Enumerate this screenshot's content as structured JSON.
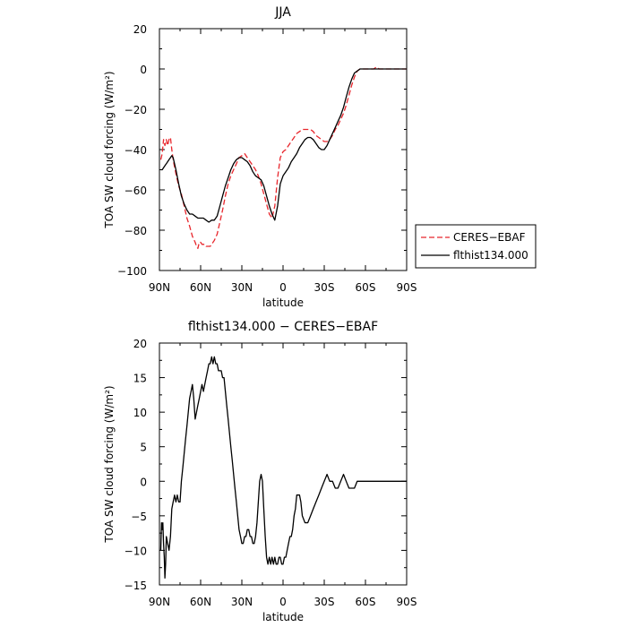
{
  "chart_data": [
    {
      "type": "line",
      "title": "JJA",
      "xlabel": "latitude",
      "ylabel": "TOA SW cloud forcing (W/m²)",
      "ylim": [
        -100,
        20
      ],
      "xlim": [
        90,
        -90
      ],
      "x_ticks": [
        90,
        60,
        30,
        0,
        -30,
        -60,
        -90
      ],
      "x_tick_labels": [
        "90N",
        "60N",
        "30N",
        "0",
        "30S",
        "60S",
        "90S"
      ],
      "y_ticks": [
        20,
        0,
        -20,
        -40,
        -60,
        -80,
        -100
      ],
      "y_tick_labels": [
        "20",
        "0",
        "−20",
        "−40",
        "−60",
        "−80",
        "−100"
      ],
      "grid": false,
      "legend": "right-outside",
      "series": [
        {
          "name": "CERES−EBAF",
          "color": "#e8262c",
          "dash": "dashed",
          "x": [
            89,
            88,
            87,
            86,
            85,
            84,
            83,
            82,
            81,
            80,
            78,
            76,
            74,
            72,
            70,
            68,
            66,
            64,
            63,
            62,
            61,
            60,
            59,
            58,
            57,
            56,
            55,
            54,
            53,
            52,
            50,
            48,
            46,
            44,
            42,
            40,
            38,
            36,
            34,
            32,
            30,
            28,
            26,
            24,
            22,
            20,
            18,
            16,
            14,
            12,
            10,
            8,
            6,
            4,
            2,
            0,
            -2,
            -4,
            -6,
            -8,
            -10,
            -12,
            -14,
            -16,
            -18,
            -20,
            -22,
            -24,
            -26,
            -28,
            -30,
            -32,
            -34,
            -36,
            -38,
            -40,
            -42,
            -44,
            -46,
            -48,
            -50,
            -52,
            -54,
            -56,
            -58,
            -60,
            -62,
            -64,
            -66,
            -68,
            -70,
            -72,
            -74,
            -76,
            -78,
            -80,
            -82,
            -84,
            -86,
            -88,
            -90
          ],
          "y": [
            -45,
            -42,
            -35,
            -38,
            -35,
            -38,
            -35,
            -34,
            -40,
            -45,
            -52,
            -58,
            -62,
            -68,
            -74,
            -78,
            -83,
            -86,
            -88,
            -89,
            -86,
            -86,
            -87,
            -87,
            -87,
            -88,
            -88,
            -88,
            -88,
            -87,
            -85,
            -82,
            -76,
            -70,
            -63,
            -57,
            -53,
            -50,
            -47,
            -44,
            -43,
            -42,
            -44,
            -46,
            -48,
            -50,
            -53,
            -57,
            -62,
            -67,
            -72,
            -74,
            -68,
            -54,
            -44,
            -41,
            -40,
            -38,
            -36,
            -34,
            -32,
            -31,
            -30,
            -30,
            -30,
            -30,
            -31,
            -33,
            -34,
            -35,
            -36,
            -36,
            -35,
            -33,
            -30,
            -28,
            -25,
            -22,
            -18,
            -13,
            -8,
            -4,
            -1,
            0,
            0,
            0,
            0,
            0,
            0,
            1,
            0,
            0,
            0,
            0,
            0,
            0,
            0,
            0,
            0,
            0,
            0
          ]
        },
        {
          "name": "flthist134.000",
          "color": "#000000",
          "dash": "solid",
          "x": [
            89,
            88,
            87,
            86,
            85,
            84,
            83,
            82,
            81,
            80,
            78,
            76,
            74,
            72,
            70,
            68,
            66,
            64,
            62,
            60,
            58,
            56,
            54,
            52,
            50,
            48,
            46,
            44,
            42,
            40,
            38,
            36,
            34,
            32,
            30,
            28,
            26,
            24,
            22,
            20,
            18,
            16,
            14,
            12,
            10,
            8,
            6,
            4,
            2,
            0,
            -2,
            -4,
            -6,
            -8,
            -10,
            -12,
            -14,
            -16,
            -18,
            -20,
            -22,
            -24,
            -26,
            -28,
            -30,
            -32,
            -34,
            -36,
            -38,
            -40,
            -42,
            -44,
            -46,
            -48,
            -50,
            -52,
            -54,
            -56,
            -58,
            -60,
            -62,
            -64,
            -66,
            -68,
            -70,
            -72,
            -74,
            -76,
            -78,
            -80,
            -82,
            -84,
            -86,
            -88,
            -90
          ],
          "y": [
            -50,
            -50,
            -49,
            -48,
            -47,
            -46,
            -45,
            -44,
            -43,
            -44,
            -50,
            -57,
            -63,
            -67,
            -70,
            -72,
            -72,
            -73,
            -74,
            -74,
            -74,
            -75,
            -76,
            -75,
            -75,
            -73,
            -68,
            -63,
            -58,
            -54,
            -50,
            -47,
            -45,
            -44,
            -44,
            -45,
            -46,
            -48,
            -51,
            -53,
            -54,
            -55,
            -58,
            -63,
            -68,
            -72,
            -75,
            -68,
            -57,
            -53,
            -51,
            -49,
            -46,
            -44,
            -42,
            -39,
            -37,
            -35,
            -34,
            -34,
            -35,
            -37,
            -39,
            -40,
            -40,
            -38,
            -35,
            -32,
            -29,
            -26,
            -23,
            -19,
            -14,
            -9,
            -5,
            -2,
            -1,
            0,
            0,
            0,
            0,
            0,
            0,
            0,
            0,
            0,
            0,
            0,
            0,
            0,
            0,
            0,
            0,
            0,
            0
          ]
        }
      ]
    },
    {
      "type": "line",
      "title": "flthist134.000 − CERES−EBAF",
      "xlabel": "latitude",
      "ylabel": "TOA SW cloud forcing (W/m²)",
      "ylim": [
        -15,
        20
      ],
      "xlim": [
        90,
        -90
      ],
      "x_ticks": [
        90,
        60,
        30,
        0,
        -30,
        -60,
        -90
      ],
      "x_tick_labels": [
        "90N",
        "60N",
        "30N",
        "0",
        "30S",
        "60S",
        "90S"
      ],
      "y_ticks": [
        20,
        15,
        10,
        5,
        0,
        -5,
        -10,
        -15
      ],
      "y_tick_labels": [
        "20",
        "15",
        "10",
        "5",
        "0",
        "−5",
        "−10",
        "−15"
      ],
      "grid": false,
      "series": [
        {
          "name": "",
          "color": "#000000",
          "dash": "solid",
          "x": [
            89,
            88.5,
            88,
            87.5,
            87,
            86.5,
            86,
            85.5,
            85,
            84,
            83,
            82,
            81,
            80,
            79,
            78,
            77,
            76,
            75,
            74,
            73,
            72,
            71,
            70,
            69,
            68,
            67,
            66,
            65,
            64,
            63,
            62,
            61,
            60,
            59,
            58,
            57,
            56,
            55,
            54,
            53,
            52,
            51,
            50,
            49,
            48,
            47,
            46,
            45,
            44,
            43,
            42,
            41,
            40,
            39,
            38,
            37,
            36,
            35,
            34,
            33,
            32,
            31,
            30,
            29,
            28,
            27,
            26,
            25,
            24,
            23,
            22,
            21,
            20,
            19,
            18,
            17,
            16,
            15,
            14,
            13,
            12,
            11,
            10,
            9,
            8,
            7,
            6,
            5,
            4,
            3,
            2,
            1,
            0,
            -1,
            -2,
            -3,
            -4,
            -5,
            -6,
            -7,
            -8,
            -9,
            -10,
            -11,
            -12,
            -13,
            -14,
            -16,
            -18,
            -20,
            -22,
            -24,
            -26,
            -28,
            -30,
            -32,
            -34,
            -36,
            -38,
            -40,
            -42,
            -44,
            -46,
            -48,
            -50,
            -52,
            -54,
            -56,
            -58,
            -60,
            -62,
            -64,
            -66,
            -68,
            -70,
            -72,
            -74,
            -76,
            -78,
            -80,
            -82,
            -84,
            -86,
            -88,
            -90
          ],
          "y": [
            -10,
            -6,
            -7,
            -6,
            -9,
            -11,
            -14,
            -12,
            -8,
            -9,
            -10,
            -8,
            -4,
            -3,
            -2,
            -3,
            -2,
            -3,
            -3,
            0,
            2,
            4,
            6,
            8,
            10,
            12,
            13,
            14,
            12,
            9,
            10,
            11,
            12,
            13,
            14,
            13,
            14,
            15,
            16,
            17,
            17,
            18,
            17,
            18,
            17,
            17,
            16,
            16,
            16,
            15,
            15,
            13,
            11,
            9,
            7,
            5,
            3,
            1,
            -1,
            -3,
            -5,
            -7,
            -8,
            -9,
            -9,
            -8,
            -8,
            -7,
            -7,
            -8,
            -8,
            -9,
            -9,
            -8,
            -6,
            -3,
            0,
            1,
            0,
            -4,
            -8,
            -11,
            -12,
            -11,
            -12,
            -11,
            -12,
            -11,
            -12,
            -12,
            -11,
            -11,
            -12,
            -12,
            -11,
            -11,
            -10,
            -9,
            -8,
            -8,
            -7,
            -5,
            -4,
            -2,
            -2,
            -2,
            -3,
            -5,
            -6,
            -6,
            -5,
            -4,
            -3,
            -2,
            -1,
            0,
            1,
            0,
            0,
            -1,
            -1,
            0,
            1,
            0,
            -1,
            -1,
            -1,
            0,
            0,
            0,
            0,
            0,
            0,
            0,
            0,
            0,
            0,
            0,
            0,
            0,
            0,
            0,
            0,
            0,
            0,
            0
          ]
        }
      ]
    }
  ]
}
